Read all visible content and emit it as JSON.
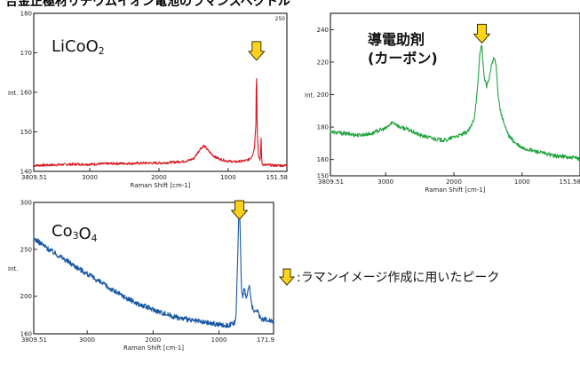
{
  "caption": "合金正極材リチウムイオン電池のラマンスペクトル",
  "legend_text": ":ラマンイメージ作成に用いたピーク",
  "colors": {
    "arrow_fill": "#ffd21a",
    "arrow_stroke": "#3c3300",
    "axis": "#000000"
  },
  "chart_data": [
    {
      "type": "line",
      "label": "LiCoO",
      "label_sub": "2",
      "color": "#d8141e",
      "xlabel": "Raman Shift [cm-1]",
      "ylabel": "Int.",
      "xlim": [
        3809.51,
        151.58
      ],
      "ylim": [
        140,
        180
      ],
      "xticks": [
        3809.51,
        3000,
        2000,
        1000,
        151.58
      ],
      "xtick_labels": [
        "3809.51",
        "3000",
        "2000",
        "1000",
        "151.58"
      ],
      "yticks": [
        140,
        150,
        160,
        170,
        180
      ],
      "ytick_labels": [
        "140",
        "150",
        "160",
        "170",
        "180"
      ],
      "corner_label": "250",
      "peak_x": 590,
      "series": [
        {
          "x": [
            3809.51,
            3600,
            3400,
            3200,
            3000,
            2800,
            2600,
            2400,
            2200,
            2000,
            1800,
            1600,
            1500,
            1450,
            1400,
            1350,
            1300,
            1250,
            1200,
            1150,
            1100,
            1050,
            1000,
            950,
            900,
            850,
            800,
            750,
            700,
            650,
            620,
            600,
            595,
            590,
            585,
            580,
            560,
            540,
            530,
            525,
            520,
            515,
            510,
            500,
            480,
            460,
            440,
            420,
            400,
            350,
            300,
            250,
            200,
            151.58
          ],
          "y": [
            141.5,
            141.6,
            141.7,
            141.8,
            141.8,
            141.9,
            142.0,
            142.0,
            142.1,
            142.1,
            142.3,
            142.6,
            143.2,
            144.5,
            145.8,
            146.5,
            145.5,
            144.5,
            143.8,
            143.3,
            143.0,
            142.8,
            142.6,
            142.5,
            142.4,
            142.5,
            142.6,
            142.7,
            143.0,
            144.0,
            146.0,
            152.0,
            160.0,
            167.0,
            158.0,
            150.0,
            143.5,
            142.8,
            145.0,
            150.5,
            145.0,
            142.5,
            142.0,
            141.8,
            141.7,
            141.6,
            141.6,
            141.6,
            141.6,
            141.5,
            141.5,
            141.5,
            141.5,
            141.5
          ]
        }
      ]
    },
    {
      "type": "line",
      "label_lines": [
        "導電助剤",
        "(カーボン)"
      ],
      "color": "#20a43c",
      "xlabel": "Raman Shift [cm-1]",
      "ylabel": "Int.",
      "xlim": [
        3809.51,
        151.58
      ],
      "ylim": [
        150,
        250
      ],
      "xticks": [
        3809.51,
        3000,
        2000,
        1000,
        151.58
      ],
      "xtick_labels": [
        "3809.51",
        "3000",
        "2000",
        "1000",
        "151.58"
      ],
      "yticks": [
        150,
        160,
        180,
        200,
        220,
        240
      ],
      "ytick_labels": [
        "150",
        "160",
        "180",
        "200",
        "220",
        "240"
      ],
      "peak_x": 1590,
      "series": [
        {
          "x": [
            3809.51,
            3600,
            3400,
            3200,
            3100,
            3000,
            2950,
            2900,
            2850,
            2800,
            2700,
            2600,
            2500,
            2400,
            2300,
            2200,
            2100,
            2000,
            1900,
            1800,
            1750,
            1700,
            1650,
            1620,
            1600,
            1590,
            1560,
            1520,
            1480,
            1450,
            1420,
            1400,
            1380,
            1350,
            1330,
            1300,
            1250,
            1200,
            1100,
            1000,
            900,
            800,
            700,
            600,
            500,
            400,
            300,
            200,
            151.58
          ],
          "y": [
            177,
            176,
            175,
            176,
            178,
            179,
            181,
            183,
            182,
            180,
            179,
            177,
            175,
            174,
            173,
            172,
            172,
            174,
            175,
            177,
            180,
            186,
            205,
            225,
            230,
            229,
            212,
            205,
            210,
            218,
            222,
            222,
            217,
            200,
            193,
            187,
            180,
            175,
            170,
            167,
            166,
            165,
            164,
            163,
            162,
            162,
            161,
            161,
            160
          ]
        }
      ]
    },
    {
      "type": "line",
      "label": "Co",
      "label_sub": "3",
      "label_tail": "O",
      "label_sub2": "4",
      "color": "#1556a3",
      "xlabel": "Raman Shift [cm-1]",
      "ylabel": "Int.",
      "xlim": [
        3809.51,
        171.9
      ],
      "ylim": [
        160,
        300
      ],
      "xticks": [
        3809.51,
        3000,
        2000,
        1000,
        171.9
      ],
      "xtick_labels": [
        "3809.51",
        "3000",
        "2000",
        "1000",
        "171.9"
      ],
      "yticks": [
        160,
        200,
        250,
        300
      ],
      "ytick_labels": [
        "160",
        "200",
        "250",
        "300"
      ],
      "peak_x": 690,
      "series": [
        {
          "x": [
            3809.51,
            3600,
            3400,
            3200,
            3000,
            2800,
            2600,
            2400,
            2200,
            2000,
            1800,
            1600,
            1400,
            1200,
            1000,
            900,
            800,
            760,
            740,
            720,
            700,
            690,
            680,
            660,
            640,
            620,
            600,
            580,
            560,
            540,
            520,
            500,
            480,
            460,
            440,
            420,
            400,
            380,
            350,
            300,
            250,
            200,
            171.9
          ],
          "y": [
            262,
            251,
            242,
            233,
            224,
            215,
            206,
            198,
            191,
            186,
            181,
            177,
            174,
            172,
            170,
            169,
            170,
            172,
            180,
            230,
            285,
            292,
            278,
            210,
            200,
            208,
            203,
            198,
            206,
            212,
            200,
            190,
            185,
            182,
            184,
            186,
            182,
            178,
            176,
            175,
            175,
            174,
            174
          ]
        }
      ]
    }
  ]
}
